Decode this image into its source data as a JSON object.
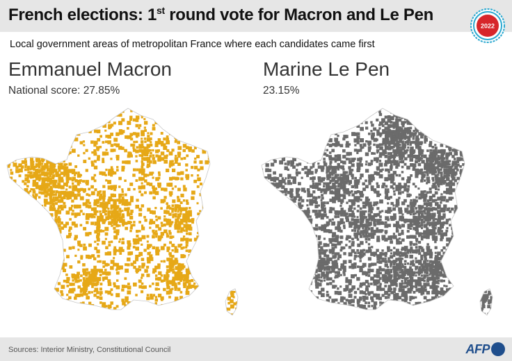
{
  "header": {
    "title_main": "French elections: 1",
    "title_sup": "st",
    "title_rest": " round vote for Macron and Le Pen",
    "badge_year": "2022"
  },
  "subtitle": "Local government areas of metropolitan France where each candidates came first",
  "candidates": [
    {
      "name": "Emmanuel Macron",
      "score": "National score: 27.85%",
      "color": "#e6a817"
    },
    {
      "name": "Marine Le Pen",
      "score": "23.15%",
      "color": "#6b6b6b"
    }
  ],
  "footer": {
    "sources": "Sources: Interior Ministry, Constitutional Council",
    "logo": "AFP"
  },
  "colors": {
    "header_bg": "#e6e6e6",
    "badge_red": "#d7262b",
    "badge_ring": "#2aa8d0",
    "logo_blue": "#1f4e8c"
  }
}
